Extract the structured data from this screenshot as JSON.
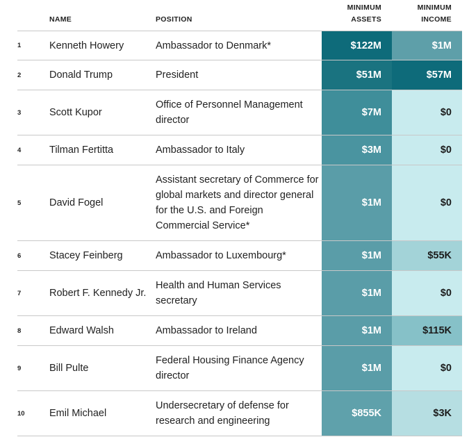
{
  "header": {
    "name": "NAME",
    "position": "POSITION",
    "assets_line1": "MINIMUM",
    "assets_line2": "ASSETS",
    "income_line1": "MINIMUM",
    "income_line2": "INCOME"
  },
  "colors": {
    "dark_teal": "#0e6b7a",
    "mid_teal": "#3d8d99",
    "teal": "#5a9da8",
    "light_teal_income": "#5e9fa9",
    "pale_cyan": "#c8ebee",
    "light_blue": "#a3d3d8",
    "mid_blue": "#86c1c8"
  },
  "rows": [
    {
      "rank": "1",
      "name": "Kenneth Howery",
      "position": "Ambassador to Denmark*",
      "assets": "$122M",
      "income": "$1M",
      "assets_color": "#0e6b7a",
      "assets_text": "#ffffff",
      "income_color": "#5e9fa9",
      "income_text": "#ffffff"
    },
    {
      "rank": "2",
      "name": "Donald Trump",
      "position": "President",
      "assets": "$51M",
      "income": "$57M",
      "assets_color": "#1a7380",
      "assets_text": "#ffffff",
      "income_color": "#0e6b7a",
      "income_text": "#ffffff"
    },
    {
      "rank": "3",
      "name": "Scott Kupor",
      "position": "Office of Personnel Management director",
      "assets": "$7M",
      "income": "$0",
      "assets_color": "#3f8e9a",
      "assets_text": "#ffffff",
      "income_color": "#c8ebee",
      "income_text": "#1c1c1c"
    },
    {
      "rank": "4",
      "name": "Tilman Fertitta",
      "position": "Ambassador to Italy",
      "assets": "$3M",
      "income": "$0",
      "assets_color": "#4a94a0",
      "assets_text": "#ffffff",
      "income_color": "#c8ebee",
      "income_text": "#1c1c1c"
    },
    {
      "rank": "5",
      "name": "David Fogel",
      "position": "Assistant secretary of Commerce for global markets and director general for the U.S. and Foreign Commercial Service*",
      "assets": "$1M",
      "income": "$0",
      "assets_color": "#5a9da8",
      "assets_text": "#ffffff",
      "income_color": "#c8ebee",
      "income_text": "#1c1c1c"
    },
    {
      "rank": "6",
      "name": "Stacey Feinberg",
      "position": "Ambassador to Luxembourg*",
      "assets": "$1M",
      "income": "$55K",
      "assets_color": "#5a9da8",
      "assets_text": "#ffffff",
      "income_color": "#a3d3d8",
      "income_text": "#1c1c1c"
    },
    {
      "rank": "7",
      "name": "Robert F. Kennedy Jr.",
      "position": "Health and Human Services secretary",
      "assets": "$1M",
      "income": "$0",
      "assets_color": "#5a9da8",
      "assets_text": "#ffffff",
      "income_color": "#c8ebee",
      "income_text": "#1c1c1c"
    },
    {
      "rank": "8",
      "name": "Edward Walsh",
      "position": "Ambassador to Ireland",
      "assets": "$1M",
      "income": "$115K",
      "assets_color": "#5a9da8",
      "assets_text": "#ffffff",
      "income_color": "#86c1c8",
      "income_text": "#1c1c1c"
    },
    {
      "rank": "9",
      "name": "Bill Pulte",
      "position": "Federal Housing Finance Agency director",
      "assets": "$1M",
      "income": "$0",
      "assets_color": "#5a9da8",
      "assets_text": "#ffffff",
      "income_color": "#c8ebee",
      "income_text": "#1c1c1c"
    },
    {
      "rank": "10",
      "name": "Emil Michael",
      "position": "Undersecretary of defense for research and engineering",
      "assets": "$855K",
      "income": "$3K",
      "assets_color": "#5fa1ab",
      "assets_text": "#ffffff",
      "income_color": "#b6dee2",
      "income_text": "#1c1c1c"
    }
  ]
}
